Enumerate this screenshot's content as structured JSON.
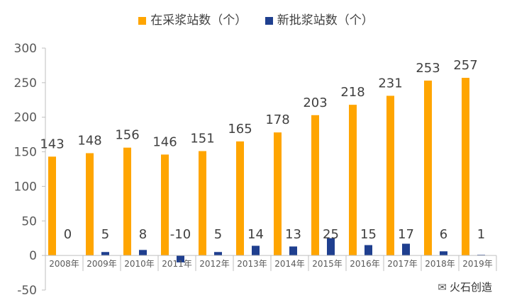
{
  "chart_data": {
    "type": "bar",
    "categories": [
      "2008年",
      "2009年",
      "2010年",
      "2011年",
      "2012年",
      "2013年",
      "2014年",
      "2015年",
      "2016年",
      "2017年",
      "2018年",
      "2019年"
    ],
    "series": [
      {
        "name": "在采浆站数（个）",
        "color": "#FFA500",
        "values": [
          143,
          148,
          156,
          146,
          151,
          165,
          178,
          203,
          218,
          231,
          253,
          257
        ]
      },
      {
        "name": "新批浆站数（个）",
        "color": "#1F3F8F",
        "values": [
          0,
          5,
          8,
          -10,
          5,
          14,
          13,
          25,
          15,
          17,
          6,
          1
        ]
      }
    ],
    "ylim": [
      -50,
      300
    ],
    "yticks": [
      -50,
      0,
      50,
      100,
      150,
      200,
      250,
      300
    ],
    "title": "",
    "xlabel": "",
    "ylabel": "",
    "grid": false,
    "legend_position": "top"
  },
  "watermark": {
    "text": "火石创造",
    "icon": "wechat-icon"
  }
}
